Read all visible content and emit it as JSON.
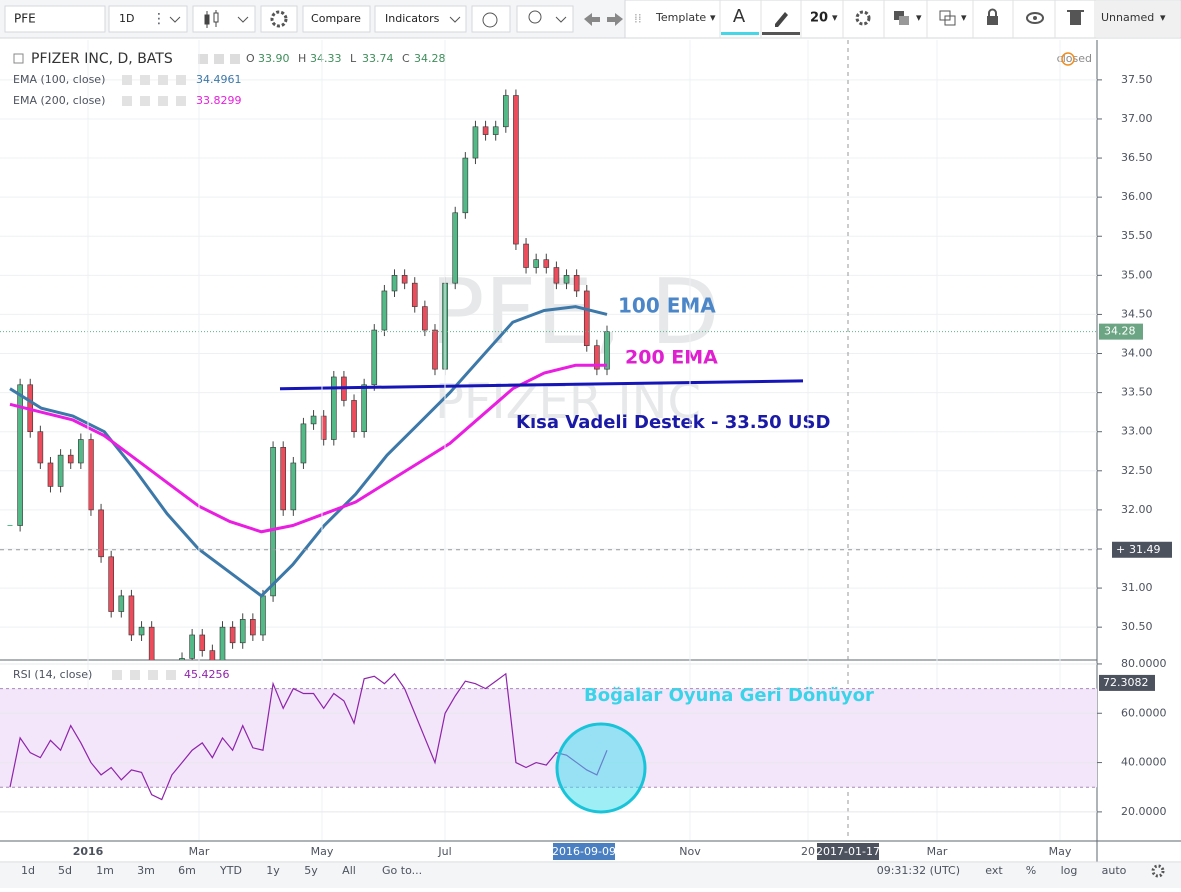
{
  "toolbar": {
    "symbol": "PFE",
    "interval": "1D",
    "compare": "Compare",
    "indicators": "Indicators",
    "template": "Template",
    "font_letter": "A",
    "font_size": "20",
    "layout_name": "Unnamed"
  },
  "legend": {
    "title": "PFIZER INC, D, BATS",
    "ohlc": [
      {
        "label": "O",
        "value": "33.90"
      },
      {
        "label": "H",
        "value": "34.33"
      },
      {
        "label": "L",
        "value": "33.74"
      },
      {
        "label": "C",
        "value": "34.28"
      }
    ],
    "status": "closed"
  },
  "chart_data": [
    {
      "type": "candlestick",
      "watermark": [
        "PFE, D",
        "PFIZER INC"
      ],
      "closes": [
        31.8,
        33.6,
        33.0,
        32.6,
        32.3,
        32.7,
        32.6,
        32.9,
        32.0,
        31.4,
        30.7,
        30.9,
        30.4,
        30.5,
        29.9,
        29.7,
        29.9,
        30.1,
        30.4,
        30.2,
        30.0,
        30.5,
        30.3,
        30.6,
        30.4,
        30.9,
        32.8,
        32.0,
        32.6,
        33.1,
        33.2,
        32.9,
        33.7,
        33.4,
        33.0,
        33.6,
        34.3,
        34.8,
        35.0,
        34.9,
        34.6,
        34.3,
        33.8,
        34.9,
        35.8,
        36.5,
        36.9,
        36.8,
        36.9,
        37.3,
        35.4,
        35.1,
        35.2,
        35.1,
        34.9,
        35.0,
        34.8,
        34.1,
        33.8,
        34.28
      ],
      "up_color": "#53b987",
      "down_color": "#eb4d5c",
      "series": [
        {
          "name": "EMA (100, close)",
          "last_value": "34.4961",
          "color": "#3c78a8",
          "values": [
            33.55,
            33.3,
            33.2,
            33.0,
            32.5,
            31.95,
            31.5,
            31.2,
            30.9,
            31.3,
            31.8,
            32.2,
            32.7,
            33.1,
            33.5,
            33.95,
            34.4,
            34.55,
            34.6,
            34.5
          ]
        },
        {
          "name": "EMA (200, close)",
          "last_value": "33.8299",
          "color": "#e91ee0",
          "values": [
            33.35,
            33.25,
            33.15,
            32.95,
            32.65,
            32.35,
            32.05,
            31.85,
            31.72,
            31.8,
            31.95,
            32.1,
            32.35,
            32.6,
            32.85,
            33.2,
            33.55,
            33.75,
            33.85,
            33.85
          ]
        }
      ],
      "support": {
        "values": [
          33.55,
          33.65
        ],
        "color": "#1515b8"
      },
      "annotations": [
        {
          "text": "100 EMA",
          "color": "#4a86c8"
        },
        {
          "text": "200 EMA",
          "color": "#e020d0"
        },
        {
          "text": "Kısa Vadeli Destek - 33.50 USD",
          "color": "#1a1aa6"
        }
      ],
      "ylim": [
        30.08,
        38.01
      ],
      "yticks": [
        {
          "value": 30.5,
          "label": "30.50"
        },
        {
          "value": 31,
          "label": "31.00"
        },
        {
          "value": 31.5,
          "label": "31.50"
        },
        {
          "value": 32,
          "label": "32.00"
        },
        {
          "value": 32.5,
          "label": "32.50"
        },
        {
          "value": 33,
          "label": "33.00"
        },
        {
          "value": 33.5,
          "label": "33.50"
        },
        {
          "value": 34,
          "label": "34.00"
        },
        {
          "value": 34.5,
          "label": "34.50"
        },
        {
          "value": 35,
          "label": "35.00"
        },
        {
          "value": 35.5,
          "label": "35.50"
        },
        {
          "value": 36,
          "label": "36.00"
        },
        {
          "value": 36.5,
          "label": "36.50"
        },
        {
          "value": 37,
          "label": "37.00"
        },
        {
          "value": 37.5,
          "label": "37.50"
        }
      ],
      "crosshair_price": 31.49,
      "grid": true
    },
    {
      "type": "line",
      "series": [
        {
          "name": "RSI (14, close)",
          "last_value": "45.4256",
          "color": "#8e24aa",
          "values": [
            30,
            50,
            44,
            42,
            49,
            45,
            55,
            48,
            40,
            35,
            38,
            33,
            37,
            36,
            27,
            25,
            35,
            40,
            45,
            48,
            42,
            50,
            45,
            55,
            46,
            45,
            72,
            62,
            70,
            68,
            68,
            62,
            68,
            65,
            56,
            74,
            75,
            72,
            76,
            70,
            60,
            50,
            40,
            60,
            67,
            73,
            72,
            70,
            73,
            76,
            40,
            38,
            40,
            39,
            44,
            43,
            40,
            37,
            35,
            45
          ]
        }
      ],
      "band": [
        30,
        70
      ],
      "annotation": {
        "text": "Boğalar Oyuna Geri Dönüyor",
        "color": "#3ad4e8"
      },
      "ylim": [
        8.6,
        81.6
      ],
      "yticks": [
        {
          "value": 20,
          "label": "20.0000"
        },
        {
          "value": 40,
          "label": "40.0000"
        },
        {
          "value": 60,
          "label": "60.0000"
        },
        {
          "value": 80,
          "label": "80.0000"
        }
      ],
      "crosshair_value": 72.3082
    }
  ],
  "time_axis": {
    "labels": [
      "2016",
      "Mar",
      "May",
      "Jul",
      "Nov",
      "20",
      "Mar",
      "May"
    ],
    "crosshair_dates": [
      "2016-09-09",
      "2017-01-17"
    ]
  },
  "bottom_bar": {
    "ranges": [
      "1d",
      "5d",
      "1m",
      "3m",
      "6m",
      "YTD",
      "1y",
      "5y",
      "All"
    ],
    "goto": "Go to...",
    "time": "09:31:32 (UTC)",
    "options": [
      "ext",
      "%",
      "log",
      "auto"
    ]
  }
}
